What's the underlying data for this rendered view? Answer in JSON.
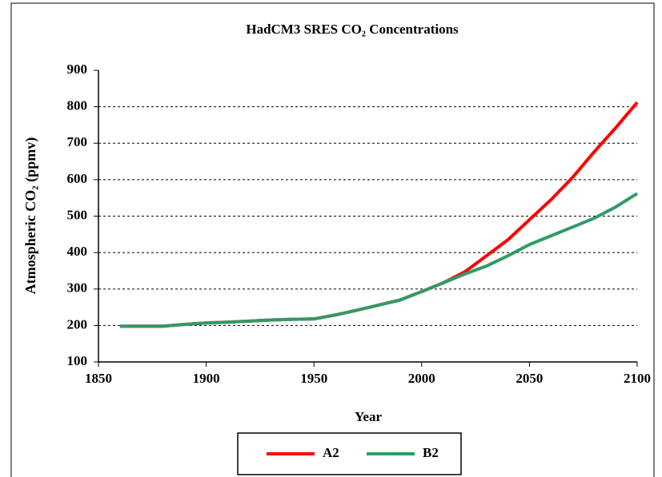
{
  "chart_data": {
    "type": "line",
    "title": "HadCM3 SRES CO₂ Concentrations",
    "x_label": "Year",
    "y_label": "Atmospheric CO₂ (ppmv)",
    "x": [
      1860,
      1870,
      1880,
      1890,
      1900,
      1910,
      1920,
      1930,
      1940,
      1950,
      1960,
      1970,
      1980,
      1990,
      2000,
      2010,
      2020,
      2030,
      2040,
      2050,
      2060,
      2070,
      2080,
      2090,
      2100
    ],
    "series": [
      {
        "name": "A2",
        "color": "#ff0000",
        "values": [
          198,
          198,
          198,
          203,
          207,
          209,
          212,
          215,
          217,
          218,
          229,
          242,
          256,
          270,
          293,
          317,
          347,
          391,
          435,
          490,
          545,
          606,
          676,
          742,
          812
        ]
      },
      {
        "name": "B2",
        "color": "#339966",
        "values": [
          198,
          198,
          198,
          203,
          207,
          209,
          212,
          215,
          217,
          218,
          229,
          242,
          256,
          270,
          293,
          317,
          341,
          363,
          391,
          422,
          446,
          470,
          494,
          525,
          562
        ]
      }
    ],
    "xlim": [
      1850,
      2100
    ],
    "xticks": [
      1850,
      1900,
      1950,
      2000,
      2050,
      2100
    ],
    "ylim": [
      100,
      900
    ],
    "yticks": [
      100,
      200,
      300,
      400,
      500,
      600,
      700,
      800,
      900
    ],
    "grid": true
  }
}
